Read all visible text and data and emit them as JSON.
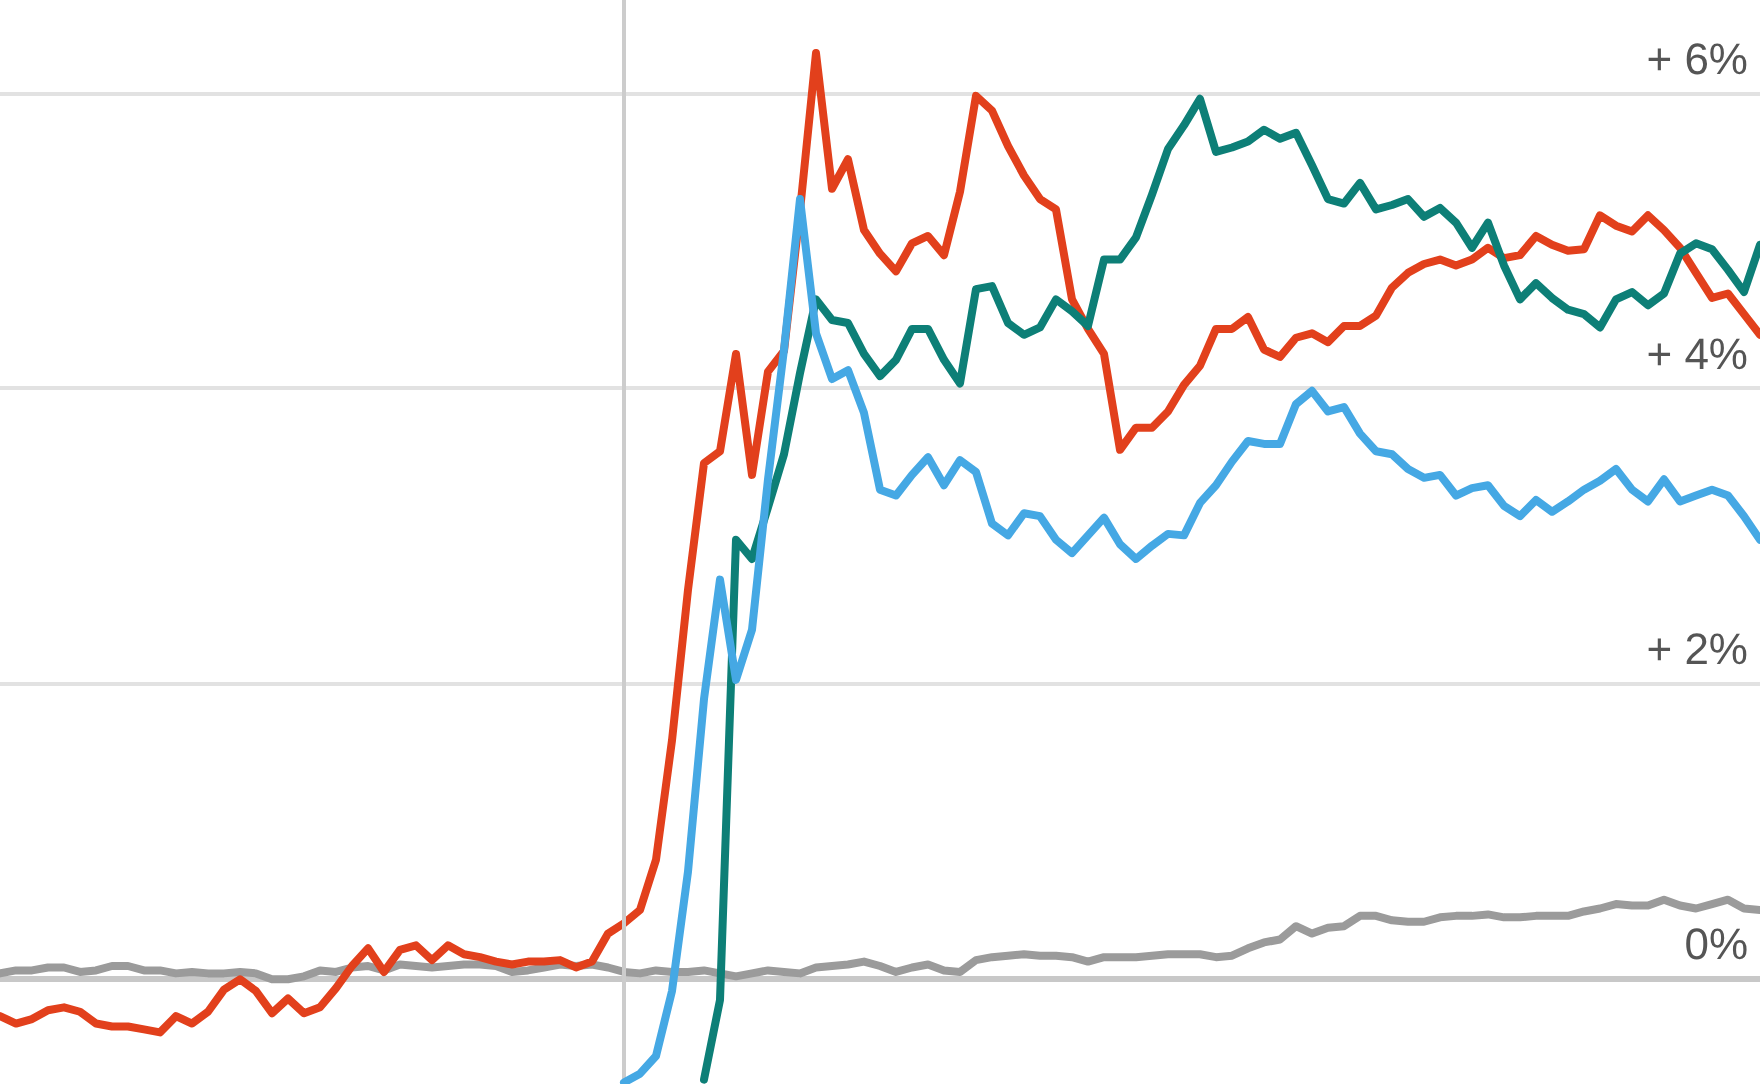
{
  "chart_data": {
    "type": "line",
    "categories": [
      null,
      null,
      null,
      null,
      null,
      null,
      null,
      null,
      null,
      null,
      null,
      null,
      null,
      null,
      null,
      null,
      null,
      null,
      null,
      null,
      null,
      null,
      null,
      null,
      null,
      null,
      null,
      null,
      null,
      null,
      null,
      null,
      null,
      null,
      null,
      null,
      null,
      null,
      null,
      null,
      null,
      null,
      null,
      null,
      null,
      null,
      null,
      null,
      null,
      null,
      null,
      null,
      null,
      null,
      null,
      null,
      null,
      null,
      null,
      null,
      null,
      null,
      null,
      null,
      null,
      null,
      null,
      null,
      null,
      null,
      null,
      null,
      null,
      null,
      null,
      null,
      null,
      null,
      null,
      null,
      null,
      null,
      null,
      null,
      null,
      null,
      null,
      null,
      null,
      null,
      null,
      null,
      null,
      null,
      null,
      null,
      null,
      null,
      null,
      null,
      null,
      null,
      null,
      null,
      null,
      null,
      null,
      null,
      null,
      null,
      null
    ],
    "series": [
      {
        "color": "#9b9b9b",
        "values": [
          0.03,
          0.05,
          0.05,
          0.07,
          0.07,
          0.04,
          0.05,
          0.08,
          0.08,
          0.05,
          0.05,
          0.03,
          0.04,
          0.03,
          0.03,
          0.04,
          0.03,
          -0.01,
          -0.01,
          0.01,
          0.05,
          0.04,
          0.07,
          0.08,
          0.05,
          0.09,
          0.08,
          0.07,
          0.08,
          0.09,
          0.09,
          0.08,
          0.04,
          0.05,
          0.07,
          0.09,
          0.08,
          0.09,
          0.07,
          0.04,
          0.03,
          0.05,
          0.04,
          0.04,
          0.05,
          0.03,
          0.01,
          0.03,
          0.05,
          0.04,
          0.03,
          0.07,
          0.08,
          0.09,
          0.11,
          0.08,
          0.04,
          0.07,
          0.09,
          0.05,
          0.04,
          0.12,
          0.14,
          0.15,
          0.16,
          0.15,
          0.15,
          0.14,
          0.11,
          0.14,
          0.14,
          0.14,
          0.15,
          0.16,
          0.16,
          0.16,
          0.14,
          0.15,
          0.2,
          0.24,
          0.26,
          0.35,
          0.3,
          0.34,
          0.35,
          0.42,
          0.42,
          0.39,
          0.38,
          0.38,
          0.41,
          0.42,
          0.42,
          0.43,
          0.41,
          0.41,
          0.42,
          0.42,
          0.42,
          0.45,
          0.47,
          0.5,
          0.49,
          0.49,
          0.53,
          0.49,
          0.47,
          0.5,
          0.53,
          0.47,
          0.46
        ]
      },
      {
        "color": "#e2401c",
        "values": [
          -0.26,
          -0.31,
          -0.28,
          -0.22,
          -0.2,
          -0.23,
          -0.31,
          -0.33,
          -0.33,
          -0.35,
          -0.37,
          -0.26,
          -0.31,
          -0.23,
          -0.08,
          -0.01,
          -0.09,
          -0.24,
          -0.14,
          -0.24,
          -0.2,
          -0.07,
          0.08,
          0.2,
          0.04,
          0.19,
          0.22,
          0.12,
          0.22,
          0.16,
          0.14,
          0.11,
          0.09,
          0.11,
          0.11,
          0.12,
          0.07,
          0.11,
          0.3,
          0.37,
          0.46,
          0.8,
          1.61,
          2.63,
          3.49,
          3.57,
          4.23,
          3.41,
          4.11,
          4.25,
          5.2,
          6.27,
          5.35,
          5.55,
          5.07,
          4.91,
          4.79,
          4.98,
          5.03,
          4.9,
          5.33,
          5.98,
          5.88,
          5.64,
          5.44,
          5.28,
          5.21,
          4.6,
          4.4,
          4.23,
          3.58,
          3.73,
          3.73,
          3.84,
          4.02,
          4.15,
          4.4,
          4.4,
          4.48,
          4.26,
          4.21,
          4.34,
          4.37,
          4.31,
          4.42,
          4.42,
          4.49,
          4.68,
          4.78,
          4.84,
          4.87,
          4.83,
          4.87,
          4.95,
          4.88,
          4.9,
          5.03,
          4.97,
          4.93,
          4.94,
          5.17,
          5.1,
          5.06,
          5.17,
          5.07,
          4.95,
          4.78,
          4.61,
          4.64,
          4.5,
          4.36
        ]
      },
      {
        "color": "#0d7f77",
        "values": [
          null,
          null,
          null,
          null,
          null,
          null,
          null,
          null,
          null,
          null,
          null,
          null,
          null,
          null,
          null,
          null,
          null,
          null,
          null,
          null,
          null,
          null,
          null,
          null,
          null,
          null,
          null,
          null,
          null,
          null,
          null,
          null,
          null,
          null,
          null,
          null,
          null,
          null,
          null,
          null,
          null,
          null,
          null,
          null,
          -0.69,
          -0.15,
          2.97,
          2.84,
          3.19,
          3.55,
          4.1,
          4.6,
          4.46,
          4.44,
          4.23,
          4.08,
          4.19,
          4.4,
          4.4,
          4.19,
          4.03,
          4.67,
          4.69,
          4.44,
          4.36,
          4.41,
          4.6,
          4.52,
          4.42,
          4.87,
          4.87,
          5.02,
          5.31,
          5.62,
          5.78,
          5.96,
          5.6,
          5.63,
          5.67,
          5.75,
          5.69,
          5.73,
          5.51,
          5.28,
          5.25,
          5.39,
          5.21,
          5.24,
          5.28,
          5.16,
          5.22,
          5.12,
          4.95,
          5.12,
          4.83,
          4.6,
          4.71,
          4.61,
          4.53,
          4.5,
          4.41,
          4.6,
          4.65,
          4.56,
          4.64,
          4.91,
          4.98,
          4.94,
          4.8,
          4.65,
          4.97
        ]
      },
      {
        "color": "#45a8e4",
        "values": [
          null,
          null,
          null,
          null,
          null,
          null,
          null,
          null,
          null,
          null,
          null,
          null,
          null,
          null,
          null,
          null,
          null,
          null,
          null,
          null,
          null,
          null,
          null,
          null,
          null,
          null,
          null,
          null,
          null,
          null,
          null,
          null,
          null,
          null,
          null,
          null,
          null,
          null,
          null,
          -0.71,
          -0.65,
          -0.53,
          -0.09,
          0.72,
          1.89,
          2.7,
          2.02,
          2.36,
          3.38,
          4.26,
          5.28,
          4.37,
          4.06,
          4.12,
          3.83,
          3.31,
          3.27,
          3.41,
          3.53,
          3.34,
          3.51,
          3.43,
          3.08,
          3.0,
          3.15,
          3.13,
          2.97,
          2.88,
          3.0,
          3.12,
          2.94,
          2.84,
          2.93,
          3.01,
          3.0,
          3.22,
          3.34,
          3.5,
          3.64,
          3.62,
          3.62,
          3.89,
          3.98,
          3.84,
          3.87,
          3.69,
          3.57,
          3.55,
          3.45,
          3.39,
          3.41,
          3.27,
          3.32,
          3.34,
          3.2,
          3.13,
          3.24,
          3.16,
          3.23,
          3.31,
          3.37,
          3.45,
          3.31,
          3.23,
          3.38,
          3.23,
          3.27,
          3.31,
          3.27,
          3.13,
          2.97
        ]
      }
    ],
    "ylim": [
      -0.72,
      6.63
    ],
    "yticks": [
      {
        "value": 0,
        "label": "0%"
      },
      {
        "value": 2,
        "label": "+ 2%"
      },
      {
        "value": 4,
        "label": "+ 4%"
      },
      {
        "value": 6,
        "label": "+ 6%"
      }
    ],
    "tick_labels": "y",
    "grid": "y",
    "line_style": "solid"
  }
}
